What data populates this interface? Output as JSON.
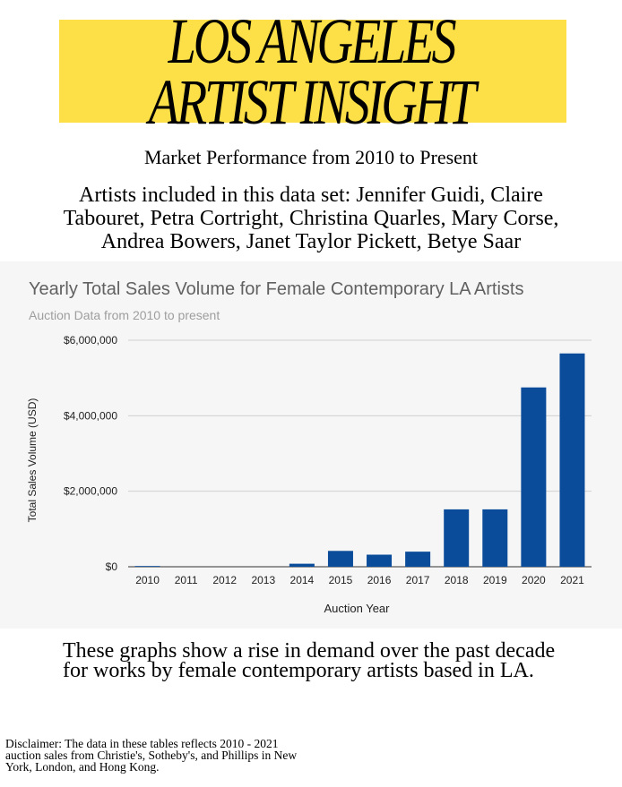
{
  "header": {
    "title_line1": "LOS ANGELES",
    "title_line2": "ARTIST INSIGHT",
    "subtitle": "Market Performance from 2010 to Present",
    "artists_text": "Artists included in this data set: Jennifer Guidi, Claire Tabouret, Petra Cortright, Christina Quarles, Mary Corse, Andrea Bowers, Janet Taylor Pickett, Betye Saar"
  },
  "colors": {
    "highlight": "#fde047",
    "bar": "#0b4c9a",
    "panel": "#f6f6f6"
  },
  "chart_data": {
    "type": "bar",
    "title": "Yearly Total Sales Volume for Female Contemporary LA Artists",
    "subtitle": "Auction Data from 2010 to present",
    "xlabel": "Auction Year",
    "ylabel": "Total Sales Volume (USD)",
    "categories": [
      "2010",
      "2011",
      "2012",
      "2013",
      "2014",
      "2015",
      "2016",
      "2017",
      "2018",
      "2019",
      "2020",
      "2021"
    ],
    "values": [
      20000,
      0,
      0,
      0,
      80000,
      420000,
      320000,
      400000,
      1520000,
      1520000,
      4750000,
      5650000
    ],
    "ylim": [
      0,
      6000000
    ],
    "yticks": [
      0,
      2000000,
      4000000,
      6000000
    ],
    "ytick_labels": [
      "$0",
      "$2,000,000",
      "$4,000,000",
      "$6,000,000"
    ],
    "grid": true,
    "legend": "none"
  },
  "footer": {
    "statement": "These graphs show a rise in demand over the past decade for works by female contemporary artists based in LA.",
    "disclaimer": "Disclaimer: The data in these tables reflects 2010 - 2021 auction sales from Christie's, Sotheby's, and Phillips in New York, London, and Hong Kong."
  }
}
